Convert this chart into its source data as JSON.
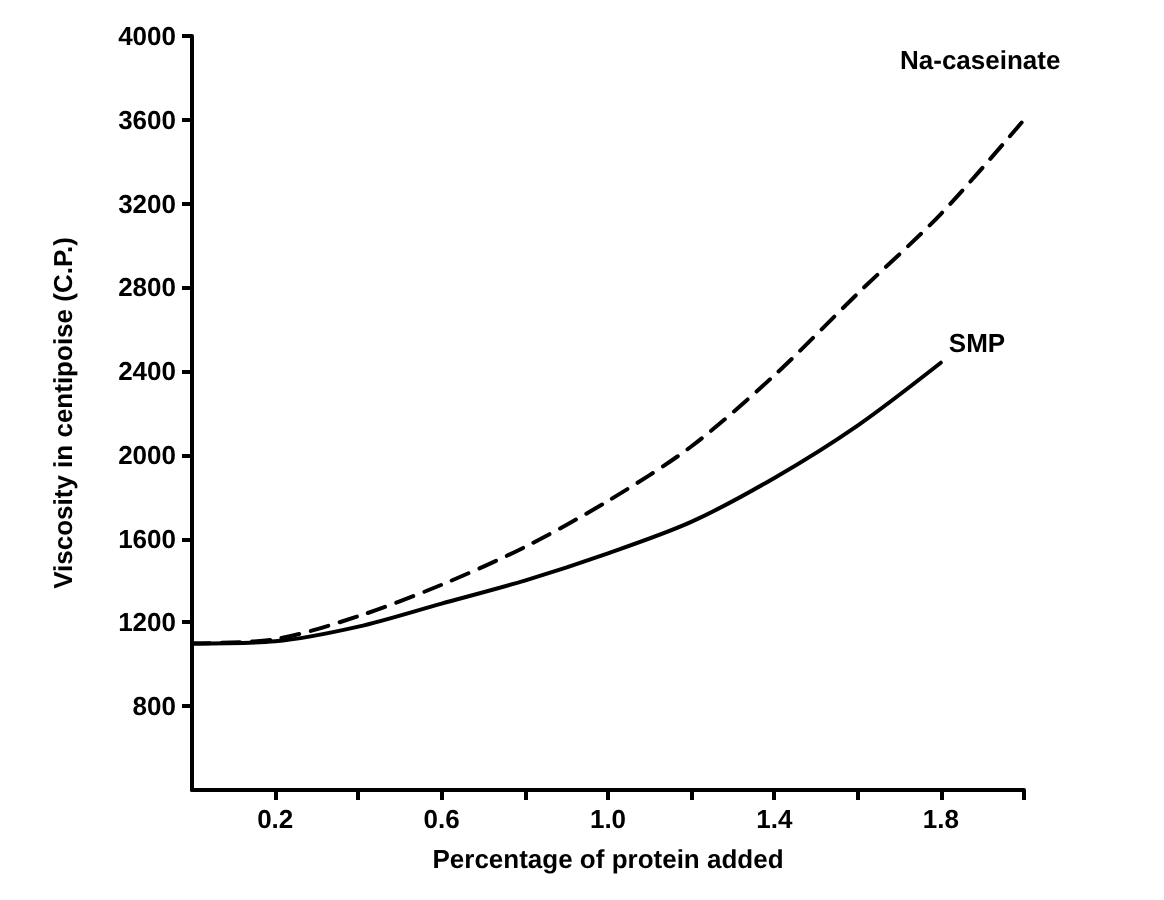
{
  "chart_data": {
    "type": "line",
    "xlabel": "Percentage of protein added",
    "ylabel": "Viscosity in centipoise (C.P.)",
    "xlim": [
      0,
      2
    ],
    "xticks": [
      0.2,
      {
        "value": 0.4,
        "label": null
      },
      0.6,
      {
        "value": 0.8,
        "label": null
      },
      {
        "value": 1.0,
        "label": "1.0"
      },
      {
        "value": 1.2,
        "label": null
      },
      1.4,
      {
        "value": 1.6,
        "label": null
      },
      1.8,
      {
        "value": 2.0,
        "label": null
      }
    ],
    "ylim": [
      400,
      4000
    ],
    "yticks": [
      800,
      1200,
      1600,
      2000,
      2400,
      2800,
      3200,
      3600,
      4000
    ],
    "grid": false,
    "legend": false,
    "marker": "none",
    "series": [
      {
        "name": "Na-caseinate",
        "color": "#000000",
        "line_style": "dashed",
        "x": [
          0,
          0.2,
          0.4,
          0.6,
          0.8,
          1.0,
          1.2,
          1.4,
          1.6,
          1.8,
          2.0
        ],
        "values": [
          1100,
          1120,
          1230,
          1380,
          1560,
          1780,
          2040,
          2380,
          2770,
          3150,
          3600
        ]
      },
      {
        "name": "SMP",
        "color": "#000000",
        "line_style": "solid",
        "x": [
          0,
          0.2,
          0.4,
          0.6,
          0.8,
          1.0,
          1.2,
          1.4,
          1.6,
          1.8
        ],
        "values": [
          1100,
          1110,
          1180,
          1290,
          1400,
          1530,
          1680,
          1890,
          2140,
          2440
        ]
      }
    ]
  }
}
